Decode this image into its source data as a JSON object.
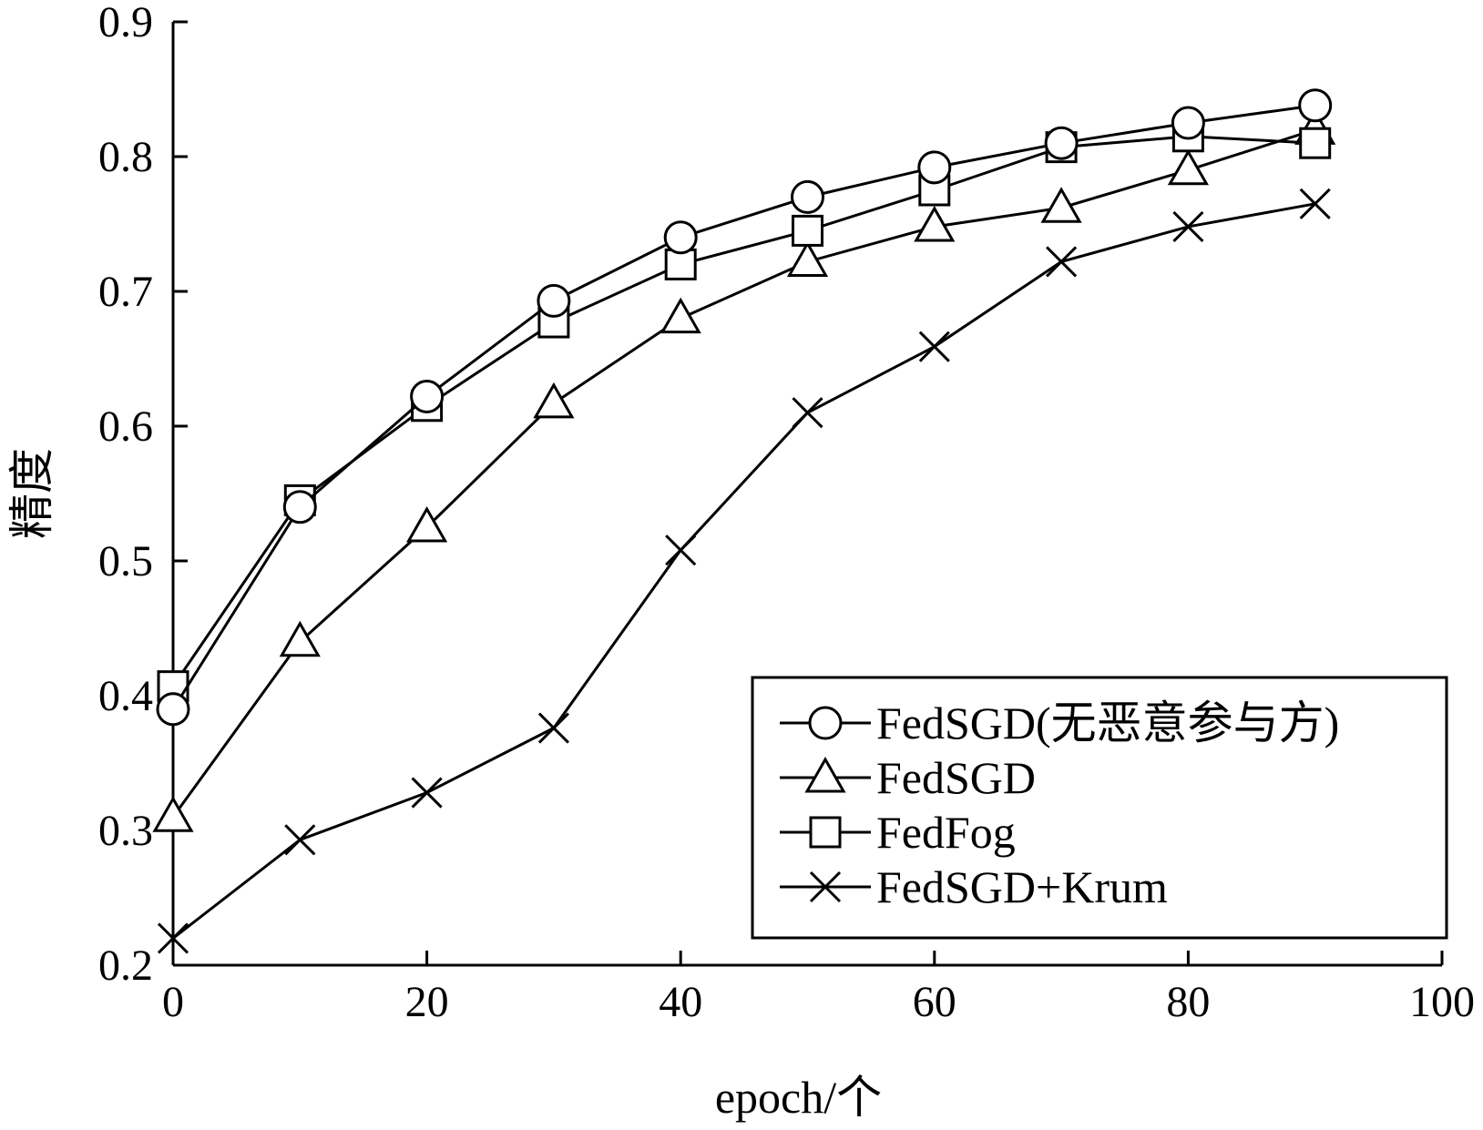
{
  "chart_data": {
    "type": "line",
    "xlabel": "epoch/个",
    "ylabel": "精度",
    "xlim": [
      0,
      100
    ],
    "ylim": [
      0.2,
      0.9
    ],
    "xticks": [
      "0",
      "20",
      "40",
      "60",
      "80",
      "100"
    ],
    "yticks": [
      "0.2",
      "0.3",
      "0.4",
      "0.5",
      "0.6",
      "0.7",
      "0.8",
      "0.9"
    ],
    "legend_position": "lower-right",
    "grid": false,
    "x": [
      0,
      10,
      20,
      30,
      40,
      50,
      60,
      70,
      80,
      90
    ],
    "series": [
      {
        "name": "FedSGD(无恶意参与方)",
        "marker": "circle",
        "values": [
          0.39,
          0.54,
          0.622,
          0.693,
          0.74,
          0.77,
          0.792,
          0.81,
          0.825,
          0.838
        ]
      },
      {
        "name": "FedSGD",
        "marker": "triangle",
        "values": [
          0.31,
          0.44,
          0.525,
          0.617,
          0.68,
          0.722,
          0.748,
          0.762,
          0.79,
          0.82
        ]
      },
      {
        "name": "FedFog",
        "marker": "square",
        "values": [
          0.407,
          0.545,
          0.615,
          0.677,
          0.72,
          0.745,
          0.775,
          0.807,
          0.815,
          0.81
        ]
      },
      {
        "name": "FedSGD+Krum",
        "marker": "x",
        "values": [
          0.22,
          0.293,
          0.328,
          0.376,
          0.508,
          0.61,
          0.659,
          0.722,
          0.748,
          0.765
        ]
      }
    ]
  }
}
